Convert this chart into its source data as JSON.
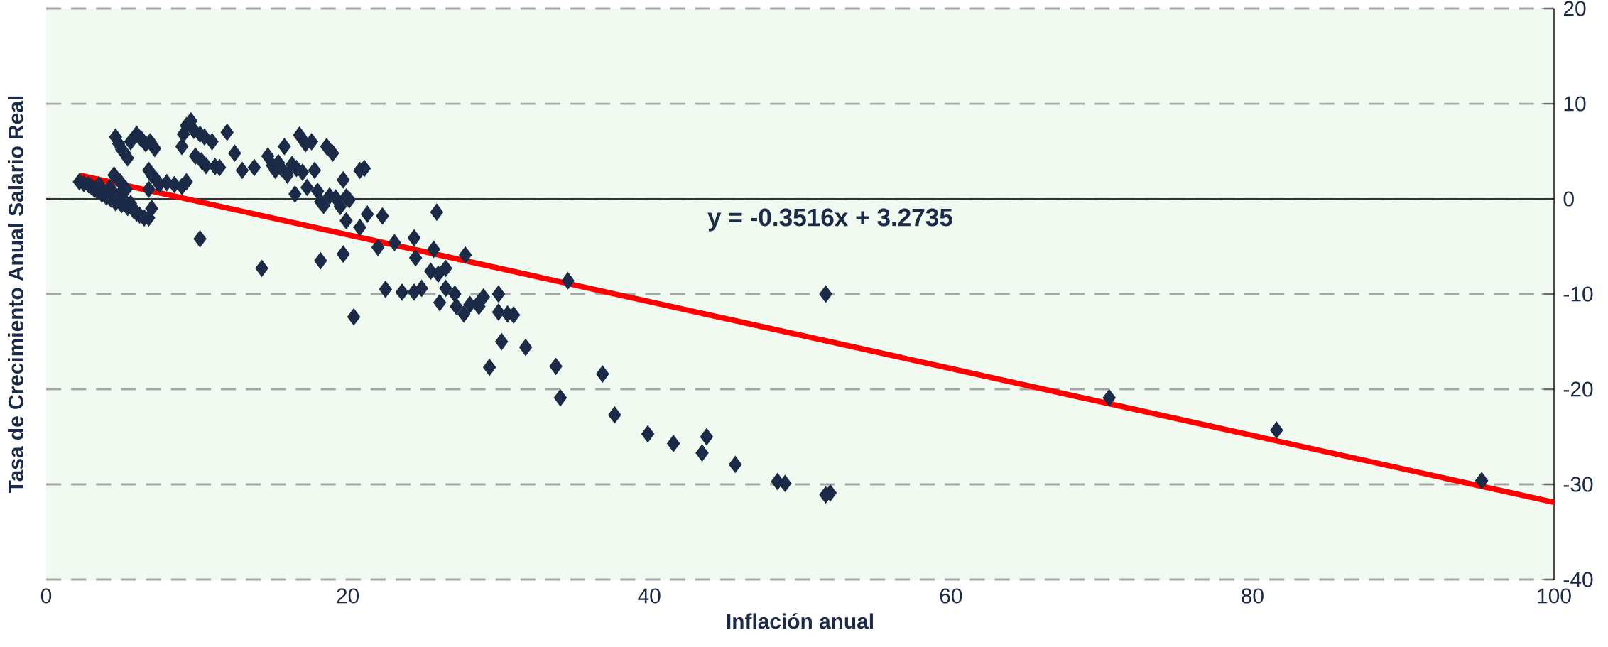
{
  "chart_data": {
    "type": "scatter",
    "xlabel": "Inflación anual",
    "ylabel": "Tasa de Crecimiento Anual Salario Real",
    "xlim": [
      0,
      100
    ],
    "xticks": [
      0,
      20,
      40,
      60,
      80,
      100
    ],
    "ylim": [
      -40,
      20
    ],
    "yticks": [
      -40,
      -30,
      -20,
      -10,
      0,
      10,
      20
    ],
    "grid": "y",
    "annotations": [
      "y = -0.3516x + 3.2735"
    ],
    "series": [
      {
        "color": "#1b2a47",
        "marker": "diamond",
        "x": [
          2.2,
          2.5,
          2.8,
          3.0,
          3.2,
          3.4,
          3.5,
          3.7,
          4.0,
          4.2,
          4.3,
          4.5,
          4.6,
          4.8,
          4.9,
          5.0,
          5.2,
          5.4,
          5.6,
          5.8,
          6.0,
          6.2,
          6.5,
          6.8,
          4.5,
          7.0,
          5.3,
          4.6,
          4.8,
          5.0,
          5.2,
          5.4,
          5.6,
          6.0,
          6.3,
          6.6,
          6.9,
          7.2,
          6.8,
          7.0,
          7.3,
          7.5,
          8.0,
          8.5,
          9.0,
          9.3,
          9.0,
          9.1,
          9.3,
          9.6,
          9.8,
          10.2,
          10.5,
          11.0,
          9.9,
          10.3,
          10.6,
          11.2,
          11.5,
          12.0,
          12.5,
          13.0,
          13.8,
          10.2,
          6.8,
          14.7,
          15.0,
          15.2,
          15.4,
          15.6,
          15.8,
          16.0,
          16.3,
          16.6,
          16.8,
          17.0,
          17.3,
          17.6,
          17.8,
          18.0,
          18.2,
          18.4,
          18.6,
          18.8,
          19.0,
          19.2,
          19.5,
          19.7,
          19.9,
          20.1,
          20.8,
          17.2,
          16.5,
          14.3,
          18.2,
          21.1,
          21.3,
          22.3,
          19.9,
          20.8,
          20.4,
          19.7,
          25.9,
          23.1,
          22.0,
          24.4,
          24.5,
          25.7,
          27.8,
          25.5,
          26.0,
          26.5,
          22.5,
          23.6,
          24.4,
          24.9,
          26.5,
          26.1,
          27.1,
          27.2,
          28.1,
          27.7,
          28.7,
          28.7,
          29.0,
          30.0,
          30.0,
          30.6,
          31.0,
          30.2,
          31.8,
          29.4,
          33.8,
          34.6,
          51.7,
          36.9,
          34.1,
          37.7,
          39.9,
          41.6,
          43.8,
          43.5,
          45.7,
          48.5,
          49.0,
          51.7,
          52.0,
          70.5,
          81.6,
          95.2
        ],
        "values": [
          1.8,
          1.6,
          1.5,
          1.3,
          1.0,
          0.8,
          1.5,
          0.5,
          0.2,
          1.2,
          0.0,
          0.6,
          -0.4,
          0.3,
          1.8,
          -0.6,
          -0.2,
          -0.9,
          -0.5,
          -1.2,
          -1.5,
          -1.7,
          -2.0,
          -2.0,
          2.5,
          -1.0,
          1.0,
          6.5,
          5.8,
          5.2,
          4.8,
          4.3,
          6.0,
          6.8,
          6.3,
          5.8,
          6.0,
          5.3,
          3.0,
          2.5,
          2.0,
          1.5,
          1.7,
          1.5,
          1.3,
          1.8,
          5.5,
          6.8,
          7.7,
          8.2,
          7.2,
          6.8,
          6.5,
          6.0,
          4.5,
          4.0,
          3.5,
          3.4,
          3.3,
          7.0,
          4.8,
          3.0,
          3.3,
          -4.2,
          1.0,
          4.5,
          3.5,
          3.0,
          3.8,
          3.2,
          5.5,
          2.5,
          3.6,
          3.2,
          6.7,
          2.8,
          1.2,
          6.0,
          3.0,
          0.8,
          -0.3,
          -0.7,
          5.5,
          0.3,
          4.8,
          0.1,
          -0.8,
          2.0,
          0.2,
          -0.1,
          3.0,
          5.8,
          0.5,
          -7.3,
          -6.5,
          3.2,
          -1.6,
          -1.8,
          -2.3,
          -3.0,
          -12.4,
          -5.8,
          -1.4,
          -4.6,
          -5.1,
          -4.1,
          -6.2,
          -5.3,
          -5.9,
          -7.6,
          -7.9,
          -7.3,
          -9.5,
          -9.8,
          -9.8,
          -9.4,
          -9.4,
          -10.9,
          -10.0,
          -11.3,
          -11.1,
          -12.1,
          -10.9,
          -11.3,
          -10.3,
          -10.0,
          -11.9,
          -12.1,
          -12.2,
          -15.0,
          -15.6,
          -17.7,
          -17.6,
          -8.6,
          -10.0,
          -18.4,
          -20.9,
          -22.7,
          -24.7,
          -25.7,
          -25.0,
          -26.7,
          -27.9,
          -29.7,
          -29.9,
          -31.1,
          -30.9,
          -20.9,
          -24.3,
          -29.6
        ]
      },
      {
        "type": "line",
        "marker": "none",
        "color": "#ff0000",
        "x": [
          2.2,
          100
        ],
        "values": [
          2.5,
          -31.89
        ]
      }
    ]
  }
}
